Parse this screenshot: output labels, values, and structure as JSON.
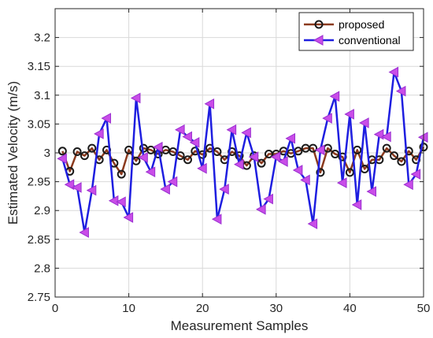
{
  "chart_data": {
    "type": "line",
    "title": "",
    "xlabel": "Measurement Samples",
    "ylabel": "Estimated Velocity (m/s)",
    "xlim": [
      0,
      50
    ],
    "ylim": [
      2.75,
      3.25
    ],
    "xticks": [
      0,
      10,
      20,
      30,
      40,
      50
    ],
    "yticks": [
      2.75,
      2.8,
      2.85,
      2.9,
      2.95,
      3,
      3.05,
      3.1,
      3.15,
      3.2
    ],
    "ytick_labels": [
      "2.75",
      "2.8",
      "2.85",
      "2.9",
      "2.95",
      "3",
      "3.05",
      "3.1",
      "3.15",
      "3.2"
    ],
    "grid": true,
    "legend": "top-right",
    "x": [
      1,
      2,
      3,
      4,
      5,
      6,
      7,
      8,
      9,
      10,
      11,
      12,
      13,
      14,
      15,
      16,
      17,
      18,
      19,
      20,
      21,
      22,
      23,
      24,
      25,
      26,
      27,
      28,
      29,
      30,
      31,
      32,
      33,
      34,
      35,
      36,
      37,
      38,
      39,
      40,
      41,
      42,
      43,
      44,
      45,
      46,
      47,
      48,
      49,
      50
    ],
    "series": [
      {
        "name": "proposed",
        "color": "#8b3a1e",
        "marker": "circle",
        "values": [
          3.003,
          2.968,
          3.002,
          2.995,
          3.008,
          2.988,
          3.005,
          2.982,
          2.963,
          3.005,
          2.986,
          3.008,
          3.005,
          2.998,
          3.005,
          3.002,
          2.995,
          2.988,
          3.003,
          2.997,
          3.008,
          3.002,
          2.988,
          3.002,
          2.995,
          2.978,
          2.995,
          2.982,
          2.998,
          2.998,
          3.003,
          2.999,
          3.003,
          3.008,
          3.008,
          2.966,
          3.008,
          2.998,
          2.993,
          2.966,
          3.005,
          2.972,
          2.988,
          2.988,
          3.008,
          2.995,
          2.985,
          3.003,
          2.988,
          3.01
        ]
      },
      {
        "name": "conventional",
        "color": "#1e1ee0",
        "marker": "triangle-left",
        "values": [
          2.99,
          2.945,
          2.94,
          2.862,
          2.935,
          3.033,
          3.06,
          2.917,
          2.915,
          2.888,
          3.095,
          2.992,
          2.967,
          3.01,
          2.937,
          2.95,
          3.04,
          3.028,
          3.018,
          2.973,
          3.085,
          2.885,
          2.937,
          3.04,
          2.98,
          3.035,
          2.993,
          2.902,
          2.92,
          2.993,
          2.985,
          3.025,
          2.97,
          2.953,
          2.877,
          3.005,
          3.06,
          3.098,
          2.948,
          3.067,
          2.91,
          3.052,
          2.933,
          3.032,
          3.028,
          3.14,
          3.107,
          2.945,
          2.963,
          3.027
        ]
      }
    ]
  }
}
